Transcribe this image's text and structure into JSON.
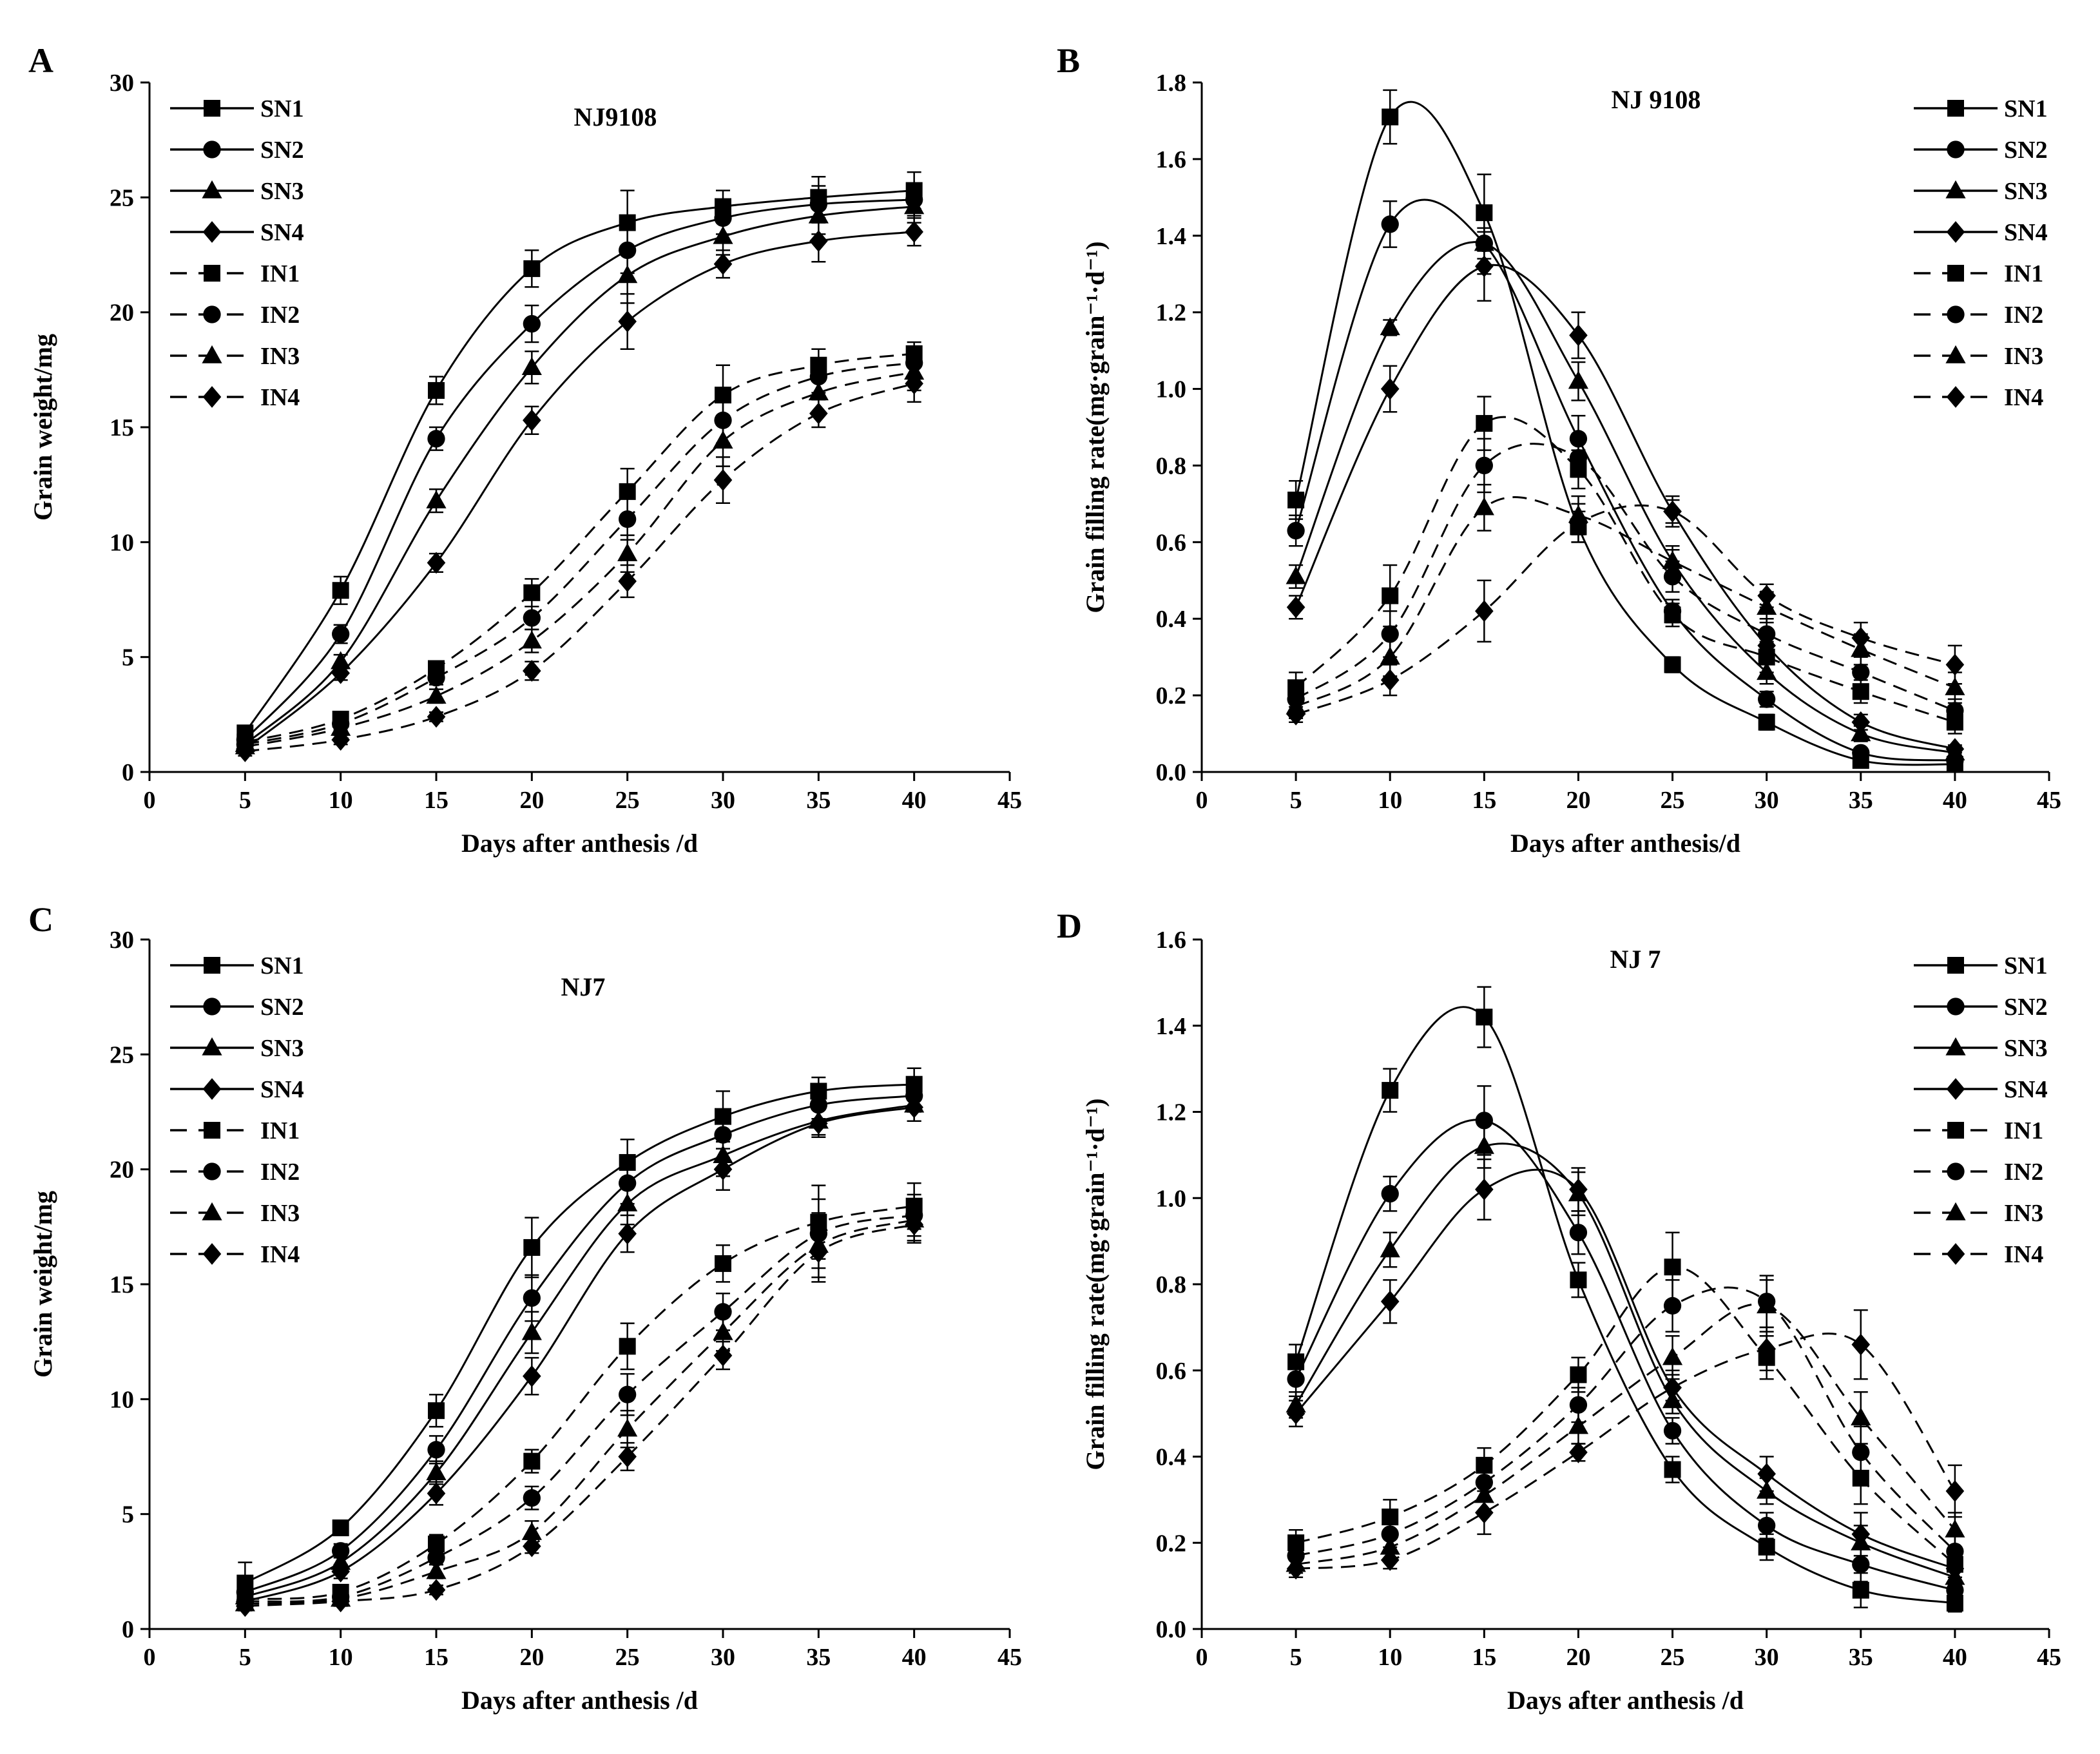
{
  "chart_data": [
    {
      "type": "line",
      "panel": "A",
      "title": "NJ9108",
      "xlabel": "Days after anthesis /d",
      "ylabel": "Grain weight/mg",
      "xlim": [
        0,
        45
      ],
      "ylim": [
        0,
        30
      ],
      "xticks": [
        "0",
        "5",
        "10",
        "15",
        "20",
        "25",
        "30",
        "35",
        "40",
        "45"
      ],
      "yticks": [
        "0",
        "5",
        "10",
        "15",
        "20",
        "25",
        "30"
      ],
      "legend_position": "top-left",
      "x": [
        5,
        10,
        15,
        20,
        25,
        30,
        35,
        40
      ],
      "series": [
        {
          "name": "SN1",
          "marker": "square",
          "dash": false,
          "values": [
            1.7,
            7.9,
            16.6,
            21.9,
            23.9,
            24.6,
            25.0,
            25.3
          ],
          "err": [
            0.2,
            0.6,
            0.6,
            0.8,
            1.4,
            0.7,
            0.9,
            0.8
          ]
        },
        {
          "name": "SN2",
          "marker": "circle",
          "dash": false,
          "values": [
            1.4,
            6.0,
            14.5,
            19.5,
            22.7,
            24.1,
            24.7,
            24.9
          ],
          "err": [
            0.2,
            0.4,
            0.5,
            0.8,
            1.0,
            0.7,
            0.8,
            0.7
          ]
        },
        {
          "name": "SN3",
          "marker": "triangle",
          "dash": false,
          "values": [
            1.2,
            4.8,
            11.8,
            17.6,
            21.6,
            23.3,
            24.2,
            24.6
          ],
          "err": [
            0.2,
            0.3,
            0.5,
            0.7,
            1.2,
            0.8,
            0.8,
            0.7
          ]
        },
        {
          "name": "SN4",
          "marker": "diamond",
          "dash": false,
          "values": [
            1.0,
            4.3,
            9.1,
            15.3,
            19.6,
            22.1,
            23.1,
            23.5
          ],
          "err": [
            0.2,
            0.3,
            0.4,
            0.6,
            1.2,
            0.6,
            0.9,
            0.6
          ]
        },
        {
          "name": "IN1",
          "marker": "square",
          "dash": true,
          "values": [
            1.3,
            2.3,
            4.5,
            7.8,
            12.2,
            16.4,
            17.7,
            18.2
          ],
          "err": [
            0.2,
            0.3,
            0.3,
            0.6,
            1.0,
            1.3,
            0.7,
            0.5
          ]
        },
        {
          "name": "IN2",
          "marker": "circle",
          "dash": true,
          "values": [
            1.2,
            2.1,
            4.1,
            6.7,
            11.0,
            15.3,
            17.2,
            17.8
          ],
          "err": [
            0.2,
            0.3,
            0.3,
            0.5,
            0.9,
            1.0,
            0.7,
            0.7
          ]
        },
        {
          "name": "IN3",
          "marker": "triangle",
          "dash": true,
          "values": [
            1.1,
            1.9,
            3.3,
            5.7,
            9.5,
            14.4,
            16.5,
            17.4
          ],
          "err": [
            0.2,
            0.3,
            0.3,
            0.5,
            0.8,
            1.1,
            0.9,
            0.8
          ]
        },
        {
          "name": "IN4",
          "marker": "diamond",
          "dash": true,
          "values": [
            0.9,
            1.4,
            2.4,
            4.4,
            8.3,
            12.7,
            15.6,
            16.9
          ],
          "err": [
            0.2,
            0.2,
            0.2,
            0.4,
            0.7,
            1.0,
            0.6,
            0.8
          ]
        }
      ]
    },
    {
      "type": "line",
      "panel": "B",
      "title": "NJ 9108",
      "xlabel": "Days after anthesis/d",
      "ylabel": "Grain filling rate(mg·grain⁻¹·d⁻¹)",
      "xlim": [
        0,
        45
      ],
      "ylim": [
        0,
        1.8
      ],
      "xticks": [
        "0",
        "5",
        "10",
        "15",
        "20",
        "25",
        "30",
        "35",
        "40",
        "45"
      ],
      "yticks": [
        "0.0",
        "0.2",
        "0.4",
        "0.6",
        "0.8",
        "1.0",
        "1.2",
        "1.4",
        "1.6",
        "1.8"
      ],
      "legend_position": "top-right",
      "x": [
        5,
        10,
        15,
        20,
        25,
        30,
        35,
        40
      ],
      "series": [
        {
          "name": "SN1",
          "marker": "square",
          "dash": false,
          "values": [
            0.71,
            1.71,
            1.46,
            0.64,
            0.28,
            0.13,
            0.03,
            0.02
          ],
          "err": [
            0.05,
            0.07,
            0.1,
            0.04,
            0.02,
            0.02,
            0.01,
            0.01
          ]
        },
        {
          "name": "SN2",
          "marker": "circle",
          "dash": false,
          "values": [
            0.63,
            1.43,
            1.38,
            0.87,
            0.42,
            0.19,
            0.05,
            0.03
          ],
          "err": [
            0.04,
            0.06,
            0.08,
            0.06,
            0.03,
            0.02,
            0.01,
            0.01
          ]
        },
        {
          "name": "SN3",
          "marker": "triangle",
          "dash": false,
          "values": [
            0.51,
            1.16,
            1.38,
            1.02,
            0.55,
            0.26,
            0.1,
            0.05
          ],
          "err": [
            0.03,
            0.02,
            0.04,
            0.05,
            0.03,
            0.03,
            0.02,
            0.01
          ]
        },
        {
          "name": "SN4",
          "marker": "diamond",
          "dash": false,
          "values": [
            0.43,
            1.0,
            1.32,
            1.14,
            0.68,
            0.33,
            0.13,
            0.06
          ],
          "err": [
            0.03,
            0.06,
            0.09,
            0.06,
            0.03,
            0.03,
            0.02,
            0.01
          ]
        },
        {
          "name": "IN1",
          "marker": "square",
          "dash": true,
          "values": [
            0.22,
            0.46,
            0.91,
            0.79,
            0.41,
            0.3,
            0.21,
            0.13
          ],
          "err": [
            0.04,
            0.08,
            0.07,
            0.05,
            0.03,
            0.04,
            0.03,
            0.03
          ]
        },
        {
          "name": "IN2",
          "marker": "circle",
          "dash": true,
          "values": [
            0.19,
            0.36,
            0.8,
            0.82,
            0.51,
            0.36,
            0.26,
            0.16
          ],
          "err": [
            0.03,
            0.06,
            0.07,
            0.05,
            0.04,
            0.04,
            0.04,
            0.03
          ]
        },
        {
          "name": "IN3",
          "marker": "triangle",
          "dash": true,
          "values": [
            0.17,
            0.3,
            0.69,
            0.67,
            0.55,
            0.43,
            0.32,
            0.22
          ],
          "err": [
            0.03,
            0.05,
            0.06,
            0.05,
            0.04,
            0.04,
            0.04,
            0.04
          ]
        },
        {
          "name": "IN4",
          "marker": "diamond",
          "dash": true,
          "values": [
            0.15,
            0.24,
            0.42,
            0.65,
            0.68,
            0.46,
            0.35,
            0.28
          ],
          "err": [
            0.02,
            0.04,
            0.08,
            0.05,
            0.04,
            0.03,
            0.04,
            0.05
          ]
        }
      ]
    },
    {
      "type": "line",
      "panel": "C",
      "title": "NJ7",
      "xlabel": "Days after anthesis /d",
      "ylabel": "Grain weight/mg",
      "xlim": [
        0,
        45
      ],
      "ylim": [
        0,
        30
      ],
      "xticks": [
        "0",
        "5",
        "10",
        "15",
        "20",
        "25",
        "30",
        "35",
        "40",
        "45"
      ],
      "yticks": [
        "0",
        "5",
        "10",
        "15",
        "20",
        "25",
        "30"
      ],
      "legend_position": "top-left",
      "x": [
        5,
        10,
        15,
        20,
        25,
        30,
        35,
        40
      ],
      "series": [
        {
          "name": "SN1",
          "marker": "square",
          "dash": false,
          "values": [
            2.0,
            4.4,
            9.5,
            16.6,
            20.3,
            22.3,
            23.4,
            23.7
          ],
          "err": [
            0.9,
            0.3,
            0.7,
            1.3,
            1.0,
            1.1,
            0.6,
            0.7
          ]
        },
        {
          "name": "SN2",
          "marker": "circle",
          "dash": false,
          "values": [
            1.6,
            3.4,
            7.8,
            14.4,
            19.4,
            21.5,
            22.8,
            23.2
          ],
          "err": [
            0.4,
            0.3,
            0.6,
            1.0,
            0.9,
            1.0,
            0.6,
            0.7
          ]
        },
        {
          "name": "SN3",
          "marker": "triangle",
          "dash": false,
          "values": [
            1.4,
            2.9,
            6.8,
            12.9,
            18.5,
            20.6,
            22.1,
            22.8
          ],
          "err": [
            0.3,
            0.3,
            0.5,
            0.9,
            0.9,
            0.9,
            0.6,
            0.7
          ]
        },
        {
          "name": "SN4",
          "marker": "diamond",
          "dash": false,
          "values": [
            1.2,
            2.5,
            5.9,
            11.0,
            17.2,
            20.0,
            22.0,
            22.7
          ],
          "err": [
            0.3,
            0.3,
            0.5,
            0.8,
            0.8,
            0.9,
            0.6,
            0.6
          ]
        },
        {
          "name": "IN1",
          "marker": "square",
          "dash": true,
          "values": [
            1.3,
            1.6,
            3.7,
            7.3,
            12.3,
            15.9,
            17.7,
            18.4
          ],
          "err": [
            0.2,
            0.2,
            0.4,
            0.5,
            1.0,
            0.8,
            1.6,
            1.0
          ]
        },
        {
          "name": "IN2",
          "marker": "circle",
          "dash": true,
          "values": [
            1.2,
            1.4,
            3.1,
            5.7,
            10.2,
            13.8,
            17.2,
            18.0
          ],
          "err": [
            0.2,
            0.2,
            0.3,
            0.5,
            0.9,
            0.8,
            1.5,
            0.9
          ]
        },
        {
          "name": "IN3",
          "marker": "triangle",
          "dash": true,
          "values": [
            1.1,
            1.3,
            2.5,
            4.2,
            8.7,
            12.9,
            16.7,
            17.8
          ],
          "err": [
            0.2,
            0.2,
            0.3,
            0.5,
            0.8,
            0.8,
            1.4,
            0.9
          ]
        },
        {
          "name": "IN4",
          "marker": "diamond",
          "dash": true,
          "values": [
            1.0,
            1.2,
            1.7,
            3.6,
            7.5,
            11.9,
            16.4,
            17.6
          ],
          "err": [
            0.2,
            0.2,
            0.2,
            0.3,
            0.6,
            0.6,
            1.3,
            0.8
          ]
        }
      ]
    },
    {
      "type": "line",
      "panel": "D",
      "title": "NJ 7",
      "xlabel": "Days after anthesis /d",
      "ylabel": "Grain filling rate(mg·grain⁻¹·d⁻¹)",
      "xlim": [
        0,
        45
      ],
      "ylim": [
        0,
        1.6
      ],
      "xticks": [
        "0",
        "5",
        "10",
        "15",
        "20",
        "25",
        "30",
        "35",
        "40",
        "45"
      ],
      "yticks": [
        "0.0",
        "0.2",
        "0.4",
        "0.6",
        "0.8",
        "1.0",
        "1.2",
        "1.4",
        "1.6"
      ],
      "legend_position": "top-right",
      "x": [
        5,
        10,
        15,
        20,
        25,
        30,
        35,
        40
      ],
      "series": [
        {
          "name": "SN1",
          "marker": "square",
          "dash": false,
          "values": [
            0.62,
            1.25,
            1.42,
            0.81,
            0.37,
            0.19,
            0.09,
            0.06
          ],
          "err": [
            0.04,
            0.05,
            0.07,
            0.04,
            0.03,
            0.03,
            0.04,
            0.02
          ]
        },
        {
          "name": "SN2",
          "marker": "circle",
          "dash": false,
          "values": [
            0.58,
            1.01,
            1.18,
            0.92,
            0.46,
            0.24,
            0.15,
            0.09
          ],
          "err": [
            0.04,
            0.04,
            0.08,
            0.05,
            0.03,
            0.03,
            0.04,
            0.02
          ]
        },
        {
          "name": "SN3",
          "marker": "triangle",
          "dash": false,
          "values": [
            0.52,
            0.88,
            1.12,
            1.01,
            0.53,
            0.32,
            0.2,
            0.12
          ],
          "err": [
            0.03,
            0.04,
            0.05,
            0.05,
            0.03,
            0.03,
            0.04,
            0.02
          ]
        },
        {
          "name": "SN4",
          "marker": "diamond",
          "dash": false,
          "values": [
            0.5,
            0.76,
            1.02,
            1.02,
            0.56,
            0.36,
            0.22,
            0.14
          ],
          "err": [
            0.03,
            0.05,
            0.07,
            0.05,
            0.03,
            0.04,
            0.05,
            0.02
          ]
        },
        {
          "name": "IN1",
          "marker": "square",
          "dash": true,
          "values": [
            0.2,
            0.26,
            0.38,
            0.59,
            0.84,
            0.63,
            0.35,
            0.15
          ],
          "err": [
            0.03,
            0.04,
            0.04,
            0.04,
            0.08,
            0.05,
            0.06,
            0.03
          ]
        },
        {
          "name": "IN2",
          "marker": "circle",
          "dash": true,
          "values": [
            0.17,
            0.22,
            0.34,
            0.52,
            0.75,
            0.76,
            0.41,
            0.18
          ],
          "err": [
            0.03,
            0.03,
            0.04,
            0.04,
            0.06,
            0.06,
            0.06,
            0.04
          ]
        },
        {
          "name": "IN3",
          "marker": "triangle",
          "dash": true,
          "values": [
            0.15,
            0.19,
            0.31,
            0.47,
            0.63,
            0.75,
            0.49,
            0.23
          ],
          "err": [
            0.02,
            0.03,
            0.04,
            0.04,
            0.05,
            0.06,
            0.06,
            0.04
          ]
        },
        {
          "name": "IN4",
          "marker": "diamond",
          "dash": true,
          "values": [
            0.14,
            0.16,
            0.27,
            0.41,
            0.56,
            0.65,
            0.66,
            0.32
          ],
          "err": [
            0.02,
            0.02,
            0.05,
            0.02,
            0.04,
            0.05,
            0.08,
            0.06
          ]
        }
      ]
    }
  ]
}
